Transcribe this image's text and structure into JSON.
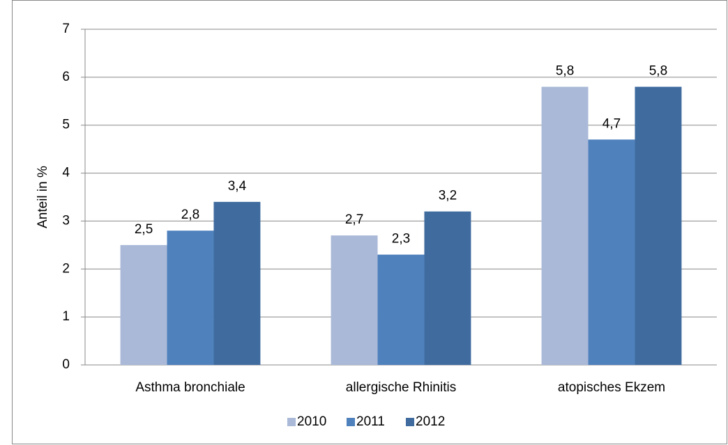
{
  "chart_data": {
    "type": "bar",
    "y_label": "Anteil in %",
    "categories": [
      "Asthma bronchiale",
      "allergische Rhinitis",
      "atopisches Ekzem"
    ],
    "series": [
      {
        "name": "2010",
        "color": "#aab9d8",
        "values": [
          2.5,
          2.7,
          5.8
        ],
        "value_labels": [
          "2,5",
          "2,7",
          "5,8"
        ]
      },
      {
        "name": "2011",
        "color": "#4f81bd",
        "values": [
          2.8,
          2.3,
          4.7
        ],
        "value_labels": [
          "2,8",
          "2,3",
          "4,7"
        ]
      },
      {
        "name": "2012",
        "color": "#3f6b9f",
        "values": [
          3.4,
          3.2,
          5.8
        ],
        "value_labels": [
          "3,4",
          "3,2",
          "5,8"
        ]
      }
    ],
    "ylim": [
      0,
      7
    ],
    "yticks": [
      0,
      1,
      2,
      3,
      4,
      5,
      6,
      7
    ],
    "grid": true,
    "legend": "bottom"
  }
}
